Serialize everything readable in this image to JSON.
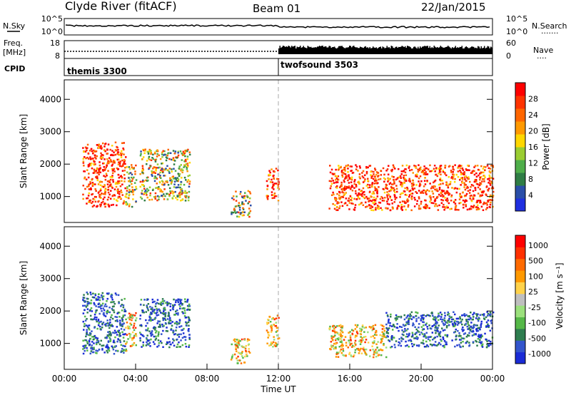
{
  "header": {
    "station": "Clyde River (fitACF)",
    "beam": "Beam 01",
    "date": "22/Jan/2015"
  },
  "noise_panel": {
    "left_label": "N.Sky",
    "right_label": "N.Search",
    "right_dots": ".......",
    "ticks_left": [
      "10^5",
      "10^0"
    ],
    "ticks_right": [
      "10^5",
      "10^0"
    ]
  },
  "freq_panel": {
    "left_label_1": "Freq.",
    "left_label_2": "[MHz]",
    "right_label": "Nave",
    "right_dots": "....",
    "ticks_left": [
      "18",
      "8"
    ],
    "ticks_right": [
      "60",
      "0"
    ]
  },
  "cpid_panel": {
    "label": "CPID",
    "programs": [
      {
        "name": "themis 3300",
        "start_hour": 0
      },
      {
        "name": "twofsound 3503",
        "start_hour": 12
      }
    ]
  },
  "chart_data": [
    {
      "type": "heatmap",
      "title": "",
      "quantity": "Power",
      "xlabel": "",
      "ylabel": "Slant Range [km]",
      "xlim_hours": [
        0,
        24
      ],
      "ylim": [
        200,
        4600
      ],
      "yticks": [
        "1000",
        "2000",
        "3000",
        "4000"
      ],
      "colorbar": {
        "label": "Power [dB]",
        "ticks": [
          "4",
          "8",
          "12",
          "16",
          "20",
          "24",
          "28"
        ],
        "colors": [
          "#1f2fe0",
          "#2a4ea8",
          "#2f7d45",
          "#4fae4a",
          "#9acd32",
          "#ffd700",
          "#ff9900",
          "#ff6600",
          "#ff3300",
          "#ff0000"
        ]
      },
      "echo_regions": [
        {
          "t_start": 1.0,
          "t_end": 3.4,
          "r_min": 700,
          "r_max": 2700,
          "level": "high"
        },
        {
          "t_start": 3.4,
          "t_end": 4.0,
          "r_min": 700,
          "r_max": 2000,
          "level": "mid"
        },
        {
          "t_start": 4.2,
          "t_end": 7.0,
          "r_min": 900,
          "r_max": 2500,
          "level": "mid"
        },
        {
          "t_start": 9.3,
          "t_end": 10.4,
          "r_min": 400,
          "r_max": 1200,
          "level": "mid"
        },
        {
          "t_start": 11.3,
          "t_end": 12.0,
          "r_min": 900,
          "r_max": 1900,
          "level": "high"
        },
        {
          "t_start": 14.8,
          "t_end": 24.0,
          "r_min": 600,
          "r_max": 2000,
          "level": "high"
        }
      ]
    },
    {
      "type": "heatmap",
      "title": "",
      "quantity": "Velocity",
      "xlabel": "Time UT",
      "ylabel": "Slant Range [km]",
      "xlim_hours": [
        0,
        24
      ],
      "ylim": [
        200,
        4600
      ],
      "xticks": [
        "00:00",
        "04:00",
        "08:00",
        "12:00",
        "16:00",
        "20:00",
        "00:00"
      ],
      "yticks": [
        "1000",
        "2000",
        "3000",
        "4000"
      ],
      "colorbar": {
        "label": "Velocity [m s⁻¹]",
        "ticks": [
          "1000",
          "500",
          "100",
          "25",
          "-25",
          "-100",
          "-500",
          "-1000"
        ],
        "colors": [
          "#1a2bd6",
          "#3355cc",
          "#2e7d4f",
          "#55b848",
          "#9be07c",
          "#bfbfbf",
          "#ffd24a",
          "#ff9900",
          "#ff6a00",
          "#ff3000",
          "#ff0000"
        ]
      },
      "echo_regions": [
        {
          "t_start": 1.0,
          "t_end": 3.4,
          "r_min": 700,
          "r_max": 2600,
          "level": "toward"
        },
        {
          "t_start": 3.4,
          "t_end": 4.0,
          "r_min": 800,
          "r_max": 2000,
          "level": "away"
        },
        {
          "t_start": 4.2,
          "t_end": 7.0,
          "r_min": 900,
          "r_max": 2400,
          "level": "toward"
        },
        {
          "t_start": 9.3,
          "t_end": 10.4,
          "r_min": 400,
          "r_max": 1200,
          "level": "away"
        },
        {
          "t_start": 11.3,
          "t_end": 12.0,
          "r_min": 900,
          "r_max": 1900,
          "level": "away"
        },
        {
          "t_start": 14.8,
          "t_end": 18.0,
          "r_min": 600,
          "r_max": 1600,
          "level": "away"
        },
        {
          "t_start": 18.0,
          "t_end": 24.0,
          "r_min": 900,
          "r_max": 2000,
          "level": "toward"
        }
      ]
    }
  ]
}
